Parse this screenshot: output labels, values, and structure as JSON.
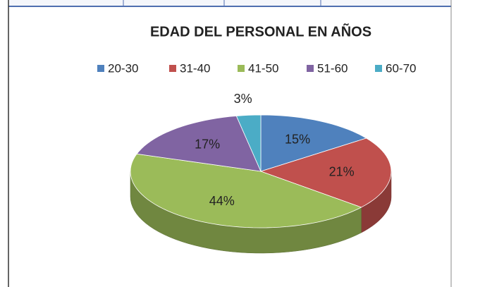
{
  "chart_data": {
    "type": "pie",
    "title": "EDAD DEL PERSONAL EN AÑOS",
    "categories": [
      "20-30",
      "31-40",
      "41-50",
      "51-60",
      "60-70"
    ],
    "values": [
      15,
      21,
      44,
      17,
      3
    ],
    "value_labels": [
      "15%",
      "21%",
      "44%",
      "17%",
      "3%"
    ],
    "colors": [
      "#4f81bd",
      "#c0504d",
      "#9bbb59",
      "#8064a2",
      "#4bacc6"
    ],
    "legend": "top"
  }
}
